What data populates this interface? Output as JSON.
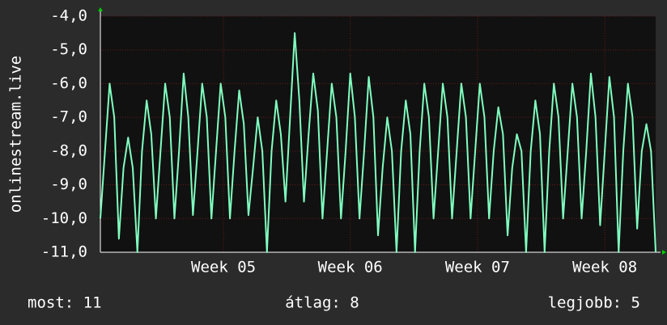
{
  "chart_data": {
    "type": "line",
    "y_label": "onlinestream.live",
    "xlim": [
      0,
      120
    ],
    "xticks": [
      {
        "value": 26.6,
        "label": "Week 05"
      },
      {
        "value": 54,
        "label": "Week 06"
      },
      {
        "value": 81.5,
        "label": "Week 07"
      },
      {
        "value": 109,
        "label": "Week 08"
      }
    ],
    "ylim": [
      -11,
      -4
    ],
    "yticks": [
      {
        "value": -11,
        "label": "-11,0"
      },
      {
        "value": -10,
        "label": "-10,0"
      },
      {
        "value": -9,
        "label": "-9,0"
      },
      {
        "value": -8,
        "label": "-8,0"
      },
      {
        "value": -7,
        "label": "-7,0"
      },
      {
        "value": -6,
        "label": "-6,0"
      },
      {
        "value": -5,
        "label": "-5,0"
      },
      {
        "value": -4,
        "label": "-4,0"
      }
    ],
    "grid": true,
    "series": [
      {
        "color": "#80ffc0",
        "values": [
          -10,
          -8,
          -6,
          -7,
          -10.6,
          -8.5,
          -7.6,
          -8.5,
          -11,
          -8,
          -6.5,
          -7.5,
          -10,
          -8,
          -6,
          -7,
          -10,
          -8,
          -5.7,
          -7,
          -9.9,
          -8,
          -6,
          -7,
          -10,
          -8,
          -6,
          -7,
          -10,
          -8,
          -6.2,
          -7.2,
          -9.9,
          -8.5,
          -7,
          -8,
          -11,
          -8,
          -6.5,
          -7.5,
          -9.5,
          -7,
          -4.5,
          -6.5,
          -9.5,
          -7.5,
          -5.7,
          -6.8,
          -10,
          -8,
          -6,
          -7,
          -10,
          -8,
          -5.7,
          -7,
          -10,
          -8,
          -5.8,
          -7,
          -10.5,
          -8.5,
          -7,
          -8,
          -11,
          -8,
          -6.5,
          -7.5,
          -11,
          -8,
          -6,
          -7,
          -10,
          -8,
          -6,
          -7,
          -10,
          -8,
          -6,
          -7,
          -10,
          -8,
          -6,
          -7,
          -10,
          -8,
          -6.7,
          -7.5,
          -10.5,
          -8.5,
          -7.5,
          -8,
          -11,
          -8,
          -6.5,
          -7.5,
          -11,
          -8,
          -6,
          -7,
          -10,
          -8,
          -6,
          -7,
          -10,
          -8,
          -5.7,
          -7,
          -10.2,
          -8,
          -5.8,
          -7,
          -11,
          -8,
          -6,
          -7,
          -10.3,
          -8,
          -7.2,
          -8,
          -11
        ]
      }
    ]
  },
  "footer": {
    "items": [
      "most: 11",
      "átlag: 8",
      "legjobb: 5"
    ]
  }
}
